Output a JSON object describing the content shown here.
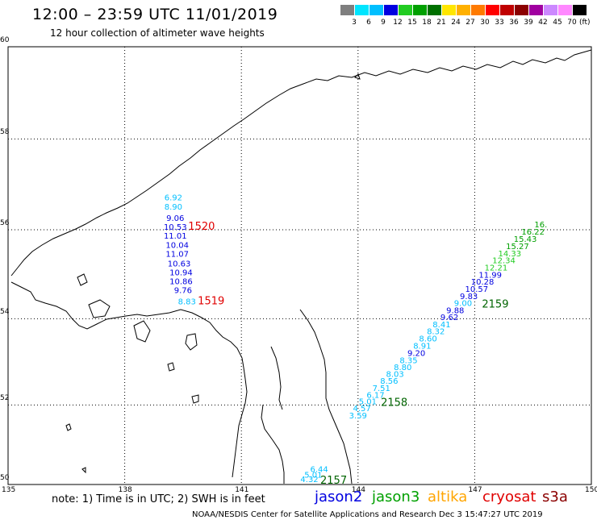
{
  "header": {
    "title": "12:00 – 23:59 UTC 11/01/2019",
    "subtitle": "12 hour collection of altimeter wave heights"
  },
  "legend": {
    "unit": "(ft)",
    "levels": [
      {
        "label": "3",
        "color": "#7f7f7f"
      },
      {
        "label": "6",
        "color": "#00e5ff"
      },
      {
        "label": "9",
        "color": "#00bfff"
      },
      {
        "label": "12",
        "color": "#0000e0"
      },
      {
        "label": "15",
        "color": "#22cc22"
      },
      {
        "label": "18",
        "color": "#00a000"
      },
      {
        "label": "21",
        "color": "#007000"
      },
      {
        "label": "24",
        "color": "#ffe600"
      },
      {
        "label": "27",
        "color": "#ffb000"
      },
      {
        "label": "30",
        "color": "#ff7a00"
      },
      {
        "label": "33",
        "color": "#ff0000"
      },
      {
        "label": "36",
        "color": "#c00000"
      },
      {
        "label": "39",
        "color": "#8b0000"
      },
      {
        "label": "42",
        "color": "#a000a0"
      },
      {
        "label": "45",
        "color": "#cc88ff"
      },
      {
        "label": "70",
        "color": "#ff88ff"
      },
      {
        "label": "",
        "color": "#000000"
      }
    ]
  },
  "axes": {
    "lon_ticks": [
      "135",
      "138",
      "141",
      "144",
      "147",
      "150"
    ],
    "lat_ticks": [
      "60",
      "58",
      "56",
      "54",
      "52",
      "50"
    ]
  },
  "map_data": {
    "lon_range": [
      135,
      150
    ],
    "lat_range": [
      50,
      60
    ],
    "tracks": [
      {
        "id": "track-cryosat-north",
        "satellite": "cryosat",
        "label": "1520",
        "label_color": "#e00000",
        "points": [
          {
            "lon": 139.25,
            "lat": 56.65,
            "swh": "6.92",
            "color": "#00bfff"
          },
          {
            "lon": 139.25,
            "lat": 56.45,
            "swh": "8.90",
            "color": "#00bfff"
          },
          {
            "lon": 139.3,
            "lat": 56.2,
            "swh": "9.06",
            "color": "#0000e0"
          },
          {
            "lon": 139.3,
            "lat": 56.0,
            "swh": "10.53",
            "color": "#0000e0"
          },
          {
            "lon": 139.3,
            "lat": 55.8,
            "swh": "11.01",
            "color": "#0000e0"
          },
          {
            "lon": 139.35,
            "lat": 55.6,
            "swh": "10.04",
            "color": "#0000e0"
          },
          {
            "lon": 139.35,
            "lat": 55.4,
            "swh": "11.07",
            "color": "#0000e0"
          },
          {
            "lon": 139.4,
            "lat": 55.18,
            "swh": "10.63",
            "color": "#0000e0"
          },
          {
            "lon": 139.45,
            "lat": 54.98,
            "swh": "10.94",
            "color": "#0000e0"
          },
          {
            "lon": 139.45,
            "lat": 54.78,
            "swh": "10.86",
            "color": "#0000e0"
          }
        ]
      },
      {
        "id": "track-cryosat-south",
        "satellite": "cryosat",
        "label": "1519",
        "label_color": "#e00000",
        "points": [
          {
            "lon": 139.5,
            "lat": 54.58,
            "swh": "9.76",
            "color": "#0000e0"
          },
          {
            "lon": 139.6,
            "lat": 54.33,
            "swh": "8.83",
            "color": "#00bfff"
          }
        ]
      },
      {
        "id": "track-jason3-2157",
        "satellite": "jason3",
        "label": "2157",
        "label_color": "#006400",
        "points": [
          {
            "lon": 143.0,
            "lat": 50.35,
            "swh": "6.44",
            "color": "#00bfff"
          },
          {
            "lon": 142.85,
            "lat": 50.2,
            "swh": "5.01",
            "color": "#00bfff"
          },
          {
            "lon": 142.75,
            "lat": 50.07,
            "swh": "4.32",
            "color": "#00bfff"
          }
        ]
      },
      {
        "id": "track-jason3-2158",
        "satellite": "jason3",
        "label": "2158",
        "label_color": "#006400",
        "points": [
          {
            "lon": 144.0,
            "lat": 51.68,
            "swh": "3.59",
            "color": "#00bfff"
          },
          {
            "lon": 144.1,
            "lat": 51.85,
            "swh": "4.57",
            "color": "#00bfff"
          },
          {
            "lon": 144.25,
            "lat": 52.02,
            "swh": "5.01",
            "color": "#00bfff"
          },
          {
            "lon": 144.45,
            "lat": 52.17,
            "swh": "6.17",
            "color": "#00bfff"
          },
          {
            "lon": 144.6,
            "lat": 52.33,
            "swh": "7.51",
            "color": "#00bfff"
          },
          {
            "lon": 144.8,
            "lat": 52.5,
            "swh": "8.56",
            "color": "#00bfff"
          },
          {
            "lon": 144.95,
            "lat": 52.66,
            "swh": "8.03",
            "color": "#00bfff"
          },
          {
            "lon": 145.15,
            "lat": 52.82,
            "swh": "8.80",
            "color": "#00bfff"
          },
          {
            "lon": 145.3,
            "lat": 52.98,
            "swh": "8.35",
            "color": "#00bfff"
          }
        ]
      },
      {
        "id": "track-jason3-2159",
        "satellite": "jason3",
        "label": "2159",
        "label_color": "#006400",
        "points": [
          {
            "lon": 145.5,
            "lat": 53.15,
            "swh": "9.20",
            "color": "#0000e0"
          },
          {
            "lon": 145.65,
            "lat": 53.32,
            "swh": "8.91",
            "color": "#00bfff"
          },
          {
            "lon": 145.8,
            "lat": 53.48,
            "swh": "8.60",
            "color": "#00bfff"
          },
          {
            "lon": 146.0,
            "lat": 53.65,
            "swh": "8.32",
            "color": "#00bfff"
          },
          {
            "lon": 146.15,
            "lat": 53.81,
            "swh": "8.41",
            "color": "#00bfff"
          },
          {
            "lon": 146.35,
            "lat": 53.97,
            "swh": "9.62",
            "color": "#0000e0"
          },
          {
            "lon": 146.5,
            "lat": 54.13,
            "swh": "9.88",
            "color": "#0000e0"
          },
          {
            "lon": 146.7,
            "lat": 54.29,
            "swh": "9.00",
            "color": "#00bfff"
          },
          {
            "lon": 146.85,
            "lat": 54.45,
            "swh": "9.83",
            "color": "#0000e0"
          },
          {
            "lon": 147.05,
            "lat": 54.61,
            "swh": "10.57",
            "color": "#0000e0"
          },
          {
            "lon": 147.2,
            "lat": 54.77,
            "swh": "10.28",
            "color": "#0000e0"
          },
          {
            "lon": 147.4,
            "lat": 54.93,
            "swh": "11.99",
            "color": "#0000e0"
          },
          {
            "lon": 147.55,
            "lat": 55.09,
            "swh": "12.21",
            "color": "#22cc22"
          },
          {
            "lon": 147.75,
            "lat": 55.25,
            "swh": "12.34",
            "color": "#22cc22"
          },
          {
            "lon": 147.9,
            "lat": 55.41,
            "swh": "14.33",
            "color": "#22cc22"
          },
          {
            "lon": 148.1,
            "lat": 55.57,
            "swh": "15.27",
            "color": "#00a000"
          },
          {
            "lon": 148.3,
            "lat": 55.73,
            "swh": "15.43",
            "color": "#00a000"
          },
          {
            "lon": 148.5,
            "lat": 55.89,
            "swh": "16.22",
            "color": "#00a000"
          },
          {
            "lon": 148.7,
            "lat": 56.05,
            "swh": "16.",
            "color": "#00a000"
          }
        ]
      }
    ]
  },
  "footer": {
    "note": "note:  1) Time is in UTC;  2) SWH is in feet",
    "satellites": [
      {
        "name": "jason2",
        "color": "#0000e0"
      },
      {
        "name": "jason3",
        "color": "#00a000"
      },
      {
        "name": "altika",
        "color": "#ffa500"
      },
      {
        "name": "cryosat",
        "color": "#e00000"
      },
      {
        "name": "s3a",
        "color": "#8b0000"
      }
    ],
    "credit": "NOAA/NESDIS Center for Satellite Applications and Research    Dec  3 15:47:27 UTC 2019"
  }
}
